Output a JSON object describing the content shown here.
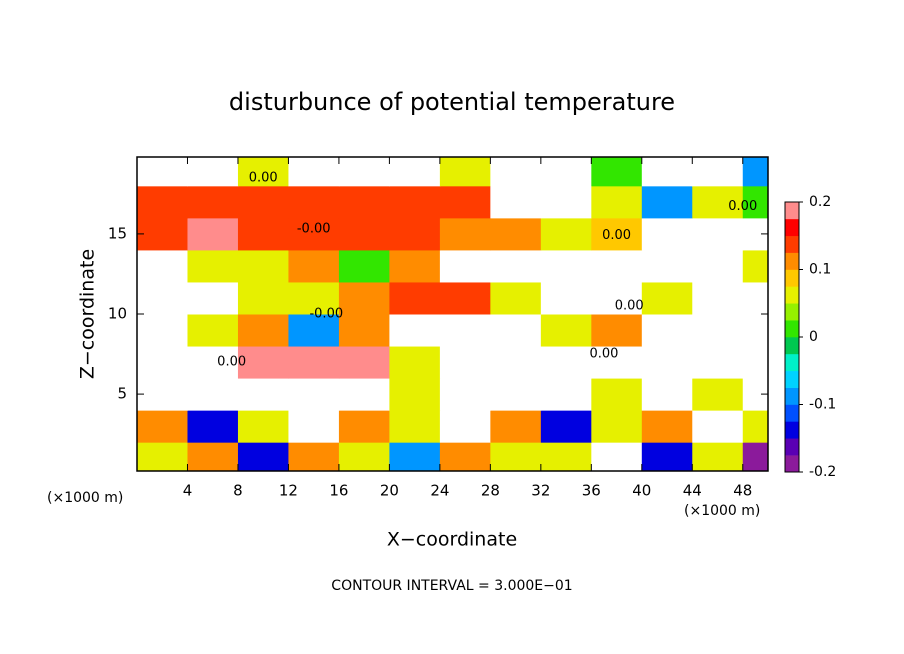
{
  "chart_data": {
    "type": "contourf",
    "title": "disturbunce of potential temperature",
    "x_label": "X−coordinate",
    "y_label": "Z−coordinate",
    "x_unit_left": "(×1000 m)",
    "x_unit_right": "(×1000 m)",
    "footer": "CONTOUR INTERVAL = 3.000E−01",
    "xlim": [
      0,
      50
    ],
    "ylim": [
      0.2,
      19.8
    ],
    "xticks": [
      4,
      8,
      12,
      16,
      20,
      24,
      28,
      32,
      36,
      40,
      44,
      48
    ],
    "yticks": [
      5,
      10,
      15
    ],
    "x": [
      2,
      6,
      10,
      14,
      18,
      22,
      26,
      30,
      34,
      38,
      42,
      46,
      50
    ],
    "y": [
      1,
      3,
      5,
      7,
      9,
      11,
      13,
      15,
      17,
      19
    ],
    "z": [
      [
        0.05,
        0.1,
        -0.15,
        0.1,
        0.05,
        -0.1,
        0.1,
        0.05,
        0.05,
        0.3,
        -0.15,
        0.05,
        -0.2
      ],
      [
        0.1,
        -0.15,
        0.05,
        -0.3,
        0.1,
        0.05,
        -0.3,
        0.1,
        -0.15,
        0.05,
        0.1,
        0.3,
        0.05
      ],
      [
        -0.3,
        0.3,
        -0.3,
        0.3,
        0.3,
        0.05,
        -0.3,
        0.3,
        0.3,
        0.05,
        -0.3,
        0.05,
        -0.3
      ],
      [
        -0.3,
        0.3,
        0.18,
        0.18,
        0.18,
        0.05,
        0.3,
        -0.3,
        0.3,
        -0.3,
        0.3,
        0.3,
        -0.3
      ],
      [
        0.3,
        0.05,
        0.1,
        -0.1,
        0.1,
        0.3,
        -0.3,
        0.3,
        0.05,
        0.12,
        0.3,
        -0.3,
        0.3
      ],
      [
        0.3,
        -0.3,
        0.05,
        0.05,
        0.1,
        0.15,
        0.15,
        0.05,
        0.3,
        0.3,
        0.05,
        -0.3,
        0.3
      ],
      [
        0.3,
        0.05,
        0.05,
        0.1,
        0,
        0.12,
        0.25,
        0.25,
        0.3,
        -0.3,
        0.3,
        0.3,
        0.05
      ],
      [
        0.15,
        0.18,
        0.15,
        0.15,
        0.15,
        0.15,
        0.12,
        0.12,
        0.05,
        0.08,
        0.3,
        -0.3,
        0.3
      ],
      [
        0.15,
        0.15,
        0.15,
        0.15,
        0.15,
        0.15,
        0.15,
        -0.3,
        0.3,
        0.05,
        -0.1,
        0.05,
        0
      ],
      [
        0.3,
        -0.3,
        0.05,
        0.3,
        -0.3,
        0.3,
        0.05,
        -0.3,
        0.3,
        0,
        -0.3,
        0.3,
        -0.1
      ]
    ],
    "out_of_range_color": "#ffffff",
    "colorbar": {
      "range": [
        -0.2,
        0.2
      ],
      "ticks": [
        -0.2,
        -0.1,
        0,
        0.1,
        0.2
      ],
      "colors": [
        "#8b1a9b",
        "#5a00b4",
        "#0000e0",
        "#0050ff",
        "#0096ff",
        "#00d2ff",
        "#00f0c8",
        "#00c850",
        "#32e600",
        "#96f000",
        "#e6f000",
        "#ffc800",
        "#ff8c00",
        "#ff3c00",
        "#ff0000",
        "#ff8c8c"
      ]
    },
    "contour_labels": [
      {
        "text": "0.00",
        "x": 10,
        "y": 18.5
      },
      {
        "text": "-0.00",
        "x": 14,
        "y": 15.3
      },
      {
        "text": "0.00",
        "x": 48,
        "y": 16.7
      },
      {
        "text": "0.00",
        "x": 38,
        "y": 14.9
      },
      {
        "text": "-0.00",
        "x": 15,
        "y": 10
      },
      {
        "text": "0.00",
        "x": 39,
        "y": 10.5
      },
      {
        "text": "0.00",
        "x": 7.5,
        "y": 7
      },
      {
        "text": "0.00",
        "x": 37,
        "y": 7.5
      }
    ]
  }
}
